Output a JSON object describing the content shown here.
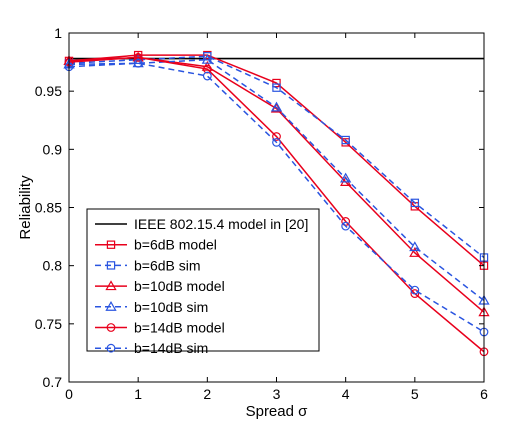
{
  "chart_data": {
    "type": "line",
    "title": "",
    "xlabel": "Spread σ",
    "ylabel": "Reliability",
    "xlim": [
      0,
      6
    ],
    "ylim": [
      0.7,
      1.0
    ],
    "xticks": [
      "0",
      "1",
      "2",
      "3",
      "4",
      "5",
      "6"
    ],
    "yticks": [
      "0.7",
      "0.75",
      "0.8",
      "0.85",
      "0.9",
      "0.95",
      "1"
    ],
    "grid": false,
    "legend_position": "bottom-left",
    "series": [
      {
        "name": "IEEE 802.15.4 model in [20]",
        "color": "#000000",
        "line": "solid",
        "marker": "none",
        "x": [
          0,
          1,
          2,
          3,
          4,
          5,
          6
        ],
        "y": [
          0.978,
          0.978,
          0.978,
          0.978,
          0.978,
          0.978,
          0.978
        ]
      },
      {
        "name": "b=6dB model",
        "color": "#e8001c",
        "line": "solid",
        "marker": "square",
        "x": [
          0,
          1,
          2,
          3,
          4,
          5,
          6
        ],
        "y": [
          0.976,
          0.981,
          0.981,
          0.957,
          0.906,
          0.851,
          0.8
        ]
      },
      {
        "name": "b=6dB sim",
        "color": "#2a55e0",
        "line": "dashed",
        "marker": "square",
        "x": [
          0,
          1,
          2,
          3,
          4,
          5,
          6
        ],
        "y": [
          0.974,
          0.977,
          0.98,
          0.953,
          0.908,
          0.854,
          0.807
        ]
      },
      {
        "name": "b=10dB model",
        "color": "#e8001c",
        "line": "solid",
        "marker": "triangle",
        "x": [
          0,
          1,
          2,
          3,
          4,
          5,
          6
        ],
        "y": [
          0.976,
          0.979,
          0.971,
          0.935,
          0.872,
          0.811,
          0.76
        ]
      },
      {
        "name": "b=10dB sim",
        "color": "#2a55e0",
        "line": "dashed",
        "marker": "triangle",
        "x": [
          0,
          1,
          2,
          3,
          4,
          5,
          6
        ],
        "y": [
          0.973,
          0.974,
          0.977,
          0.936,
          0.875,
          0.816,
          0.77
        ]
      },
      {
        "name": "b=14dB model",
        "color": "#e8001c",
        "line": "solid",
        "marker": "circle",
        "x": [
          0,
          1,
          2,
          3,
          4,
          5,
          6
        ],
        "y": [
          0.975,
          0.979,
          0.969,
          0.911,
          0.838,
          0.776,
          0.726
        ]
      },
      {
        "name": "b=14dB sim",
        "color": "#2a55e0",
        "line": "dashed",
        "marker": "circle",
        "x": [
          0,
          1,
          2,
          3,
          4,
          5,
          6
        ],
        "y": [
          0.971,
          0.974,
          0.963,
          0.906,
          0.834,
          0.779,
          0.743
        ]
      }
    ]
  }
}
